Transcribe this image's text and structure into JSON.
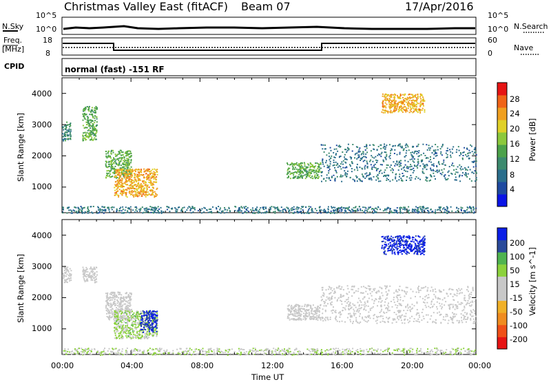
{
  "header": {
    "station": "Christmas Valley East (fitACF)",
    "beam": "Beam 07",
    "date": "17/Apr/2016"
  },
  "params": {
    "nsky_label": "N.Sky",
    "nsky_ticks": [
      "10^5",
      "10^0"
    ],
    "nsearch_label": "N.Search",
    "nsearch_ticks": [
      "10^5",
      "10^0"
    ],
    "freq_label": "Freq.",
    "freq_unit": "[MHz]",
    "freq_ticks": [
      "18",
      "8"
    ],
    "nave_label": "Nave",
    "nave_ticks": [
      "60",
      "0"
    ],
    "cpid_label": "CPID",
    "cpid_text": "normal (fast) -151 RF"
  },
  "chart_data": [
    {
      "type": "heatmap",
      "title": "Power",
      "ylabel": "Slant Range [km]",
      "y_ticks": [
        "1000",
        "2000",
        "3000",
        "4000"
      ],
      "ylim": [
        180,
        4500
      ],
      "xlim": [
        "00:00",
        "24:00"
      ],
      "colorbar": {
        "label": "Power [dB]",
        "ticks": [
          "28",
          "24",
          "20",
          "16",
          "12",
          "8",
          "4"
        ],
        "range": [
          0,
          30
        ],
        "colors": [
          "#0a14e6",
          "#1e4aa0",
          "#2a6e8c",
          "#3c8a6e",
          "#4ca24a",
          "#8cc83c",
          "#e0d028",
          "#f0a020",
          "#f06418",
          "#e61414"
        ]
      },
      "echo_regions": [
        {
          "t_start": "00:00",
          "t_end": "00:30",
          "range_km": [
            2500,
            3100
          ],
          "power_db": 10
        },
        {
          "t_start": "01:10",
          "t_end": "02:00",
          "range_km": [
            2500,
            3600
          ],
          "power_db": 14
        },
        {
          "t_start": "02:30",
          "t_end": "04:00",
          "range_km": [
            1300,
            2200
          ],
          "power_db": 14
        },
        {
          "t_start": "03:00",
          "t_end": "05:30",
          "range_km": [
            700,
            1600
          ],
          "power_db": 22
        },
        {
          "t_start": "13:00",
          "t_end": "15:00",
          "range_km": [
            1300,
            1800
          ],
          "power_db": 14
        },
        {
          "t_start": "15:00",
          "t_end": "24:00",
          "range_km": [
            1200,
            2400
          ],
          "power_db": 8
        },
        {
          "t_start": "18:30",
          "t_end": "21:00",
          "range_km": [
            3400,
            4000
          ],
          "power_db": 22
        },
        {
          "t_start": "00:00",
          "t_end": "24:00",
          "range_km": [
            180,
            400
          ],
          "power_db": 8
        }
      ]
    },
    {
      "type": "heatmap",
      "title": "Velocity",
      "ylabel": "Slant Range [km]",
      "xlabel": "Time UT",
      "y_ticks": [
        "1000",
        "2000",
        "3000",
        "4000"
      ],
      "x_ticks": [
        "00:00",
        "04:00",
        "08:00",
        "12:00",
        "16:00",
        "20:00",
        "00:00"
      ],
      "ylim": [
        180,
        4500
      ],
      "xlim": [
        "00:00",
        "24:00"
      ],
      "colorbar": {
        "label": "Velocity [m s^-1]",
        "ticks": [
          "200",
          "100",
          "50",
          "15",
          "-15",
          "-50",
          "-100",
          "-200"
        ],
        "range": [
          -250,
          250
        ],
        "colors": [
          "#e61414",
          "#f05018",
          "#f08c20",
          "#f0b028",
          "#c8c8c8",
          "#c8c8c8",
          "#8cd23c",
          "#50b450",
          "#2a4a9a",
          "#0a1ee6"
        ]
      },
      "echo_regions": [
        {
          "t_start": "00:00",
          "t_end": "00:30",
          "range_km": [
            2500,
            3000
          ],
          "velocity": 0
        },
        {
          "t_start": "01:10",
          "t_end": "02:00",
          "range_km": [
            2500,
            3000
          ],
          "velocity": 0
        },
        {
          "t_start": "02:30",
          "t_end": "04:00",
          "range_km": [
            1300,
            2200
          ],
          "velocity": 0
        },
        {
          "t_start": "03:00",
          "t_end": "05:30",
          "range_km": [
            700,
            1600
          ],
          "velocity": 60
        },
        {
          "t_start": "04:30",
          "t_end": "05:30",
          "range_km": [
            900,
            1600
          ],
          "velocity": 220
        },
        {
          "t_start": "13:00",
          "t_end": "15:00",
          "range_km": [
            1300,
            1800
          ],
          "velocity": 0
        },
        {
          "t_start": "15:00",
          "t_end": "24:00",
          "range_km": [
            1200,
            2400
          ],
          "velocity": 0
        },
        {
          "t_start": "18:30",
          "t_end": "21:00",
          "range_km": [
            3400,
            4000
          ],
          "velocity": 220
        },
        {
          "t_start": "00:00",
          "t_end": "24:00",
          "range_km": [
            180,
            400
          ],
          "velocity": 40
        }
      ]
    }
  ]
}
